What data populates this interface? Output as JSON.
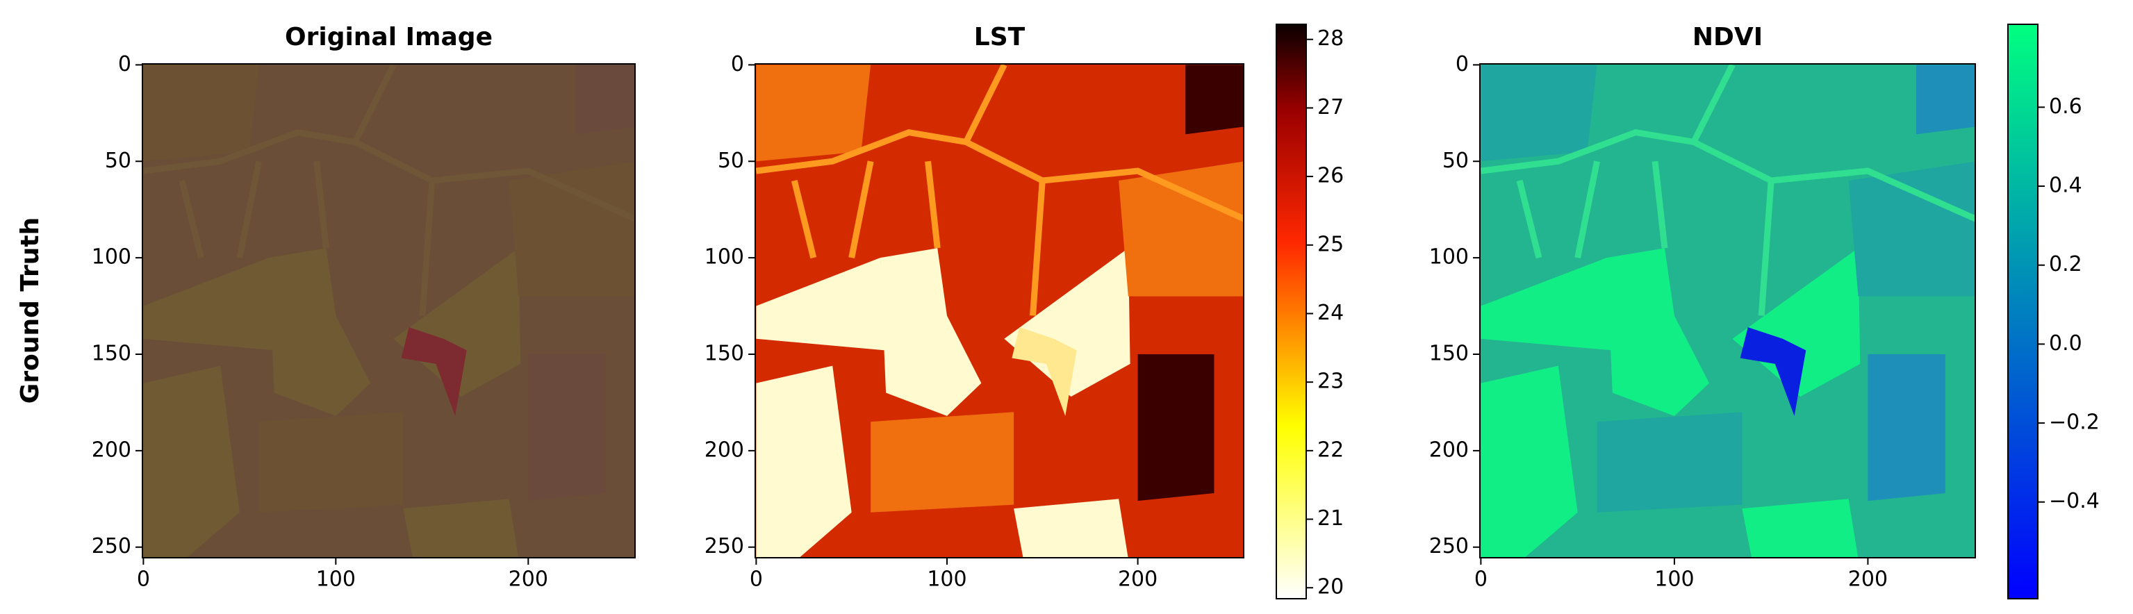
{
  "chart_data": [
    {
      "type": "image",
      "title": "Original Image",
      "ylabel": "Ground Truth",
      "xlim": [
        -0.5,
        255.5
      ],
      "ylim": [
        255.5,
        -0.5
      ],
      "xticks": [
        0,
        100,
        200
      ],
      "yticks": [
        0,
        50,
        100,
        150,
        200,
        250
      ]
    },
    {
      "type": "image",
      "title": "LST",
      "xlim": [
        -0.5,
        255.5
      ],
      "ylim": [
        255.5,
        -0.5
      ],
      "xticks": [
        0,
        100,
        200
      ],
      "yticks": [
        0,
        50,
        100,
        150,
        200,
        250
      ],
      "colorbar": {
        "colormap": "hot_r",
        "clim": [
          19.84,
          28.22
        ],
        "ticks": [
          20,
          21,
          22,
          23,
          24,
          25,
          26,
          27,
          28
        ]
      }
    },
    {
      "type": "image",
      "title": "NDVI",
      "xlim": [
        -0.5,
        255.5
      ],
      "ylim": [
        255.5,
        -0.5
      ],
      "xticks": [
        0,
        100,
        200
      ],
      "yticks": [
        0,
        50,
        100,
        150,
        200,
        250
      ],
      "colorbar": {
        "colormap": "winter",
        "clim": [
          -0.645,
          0.81
        ],
        "ticks": [
          {
            "value": -0.4,
            "label": "−0.4"
          },
          {
            "value": -0.2,
            "label": "−0.2"
          },
          {
            "value": 0,
            "label": "0.0"
          },
          0.2,
          0.4,
          0.6
        ]
      }
    }
  ]
}
